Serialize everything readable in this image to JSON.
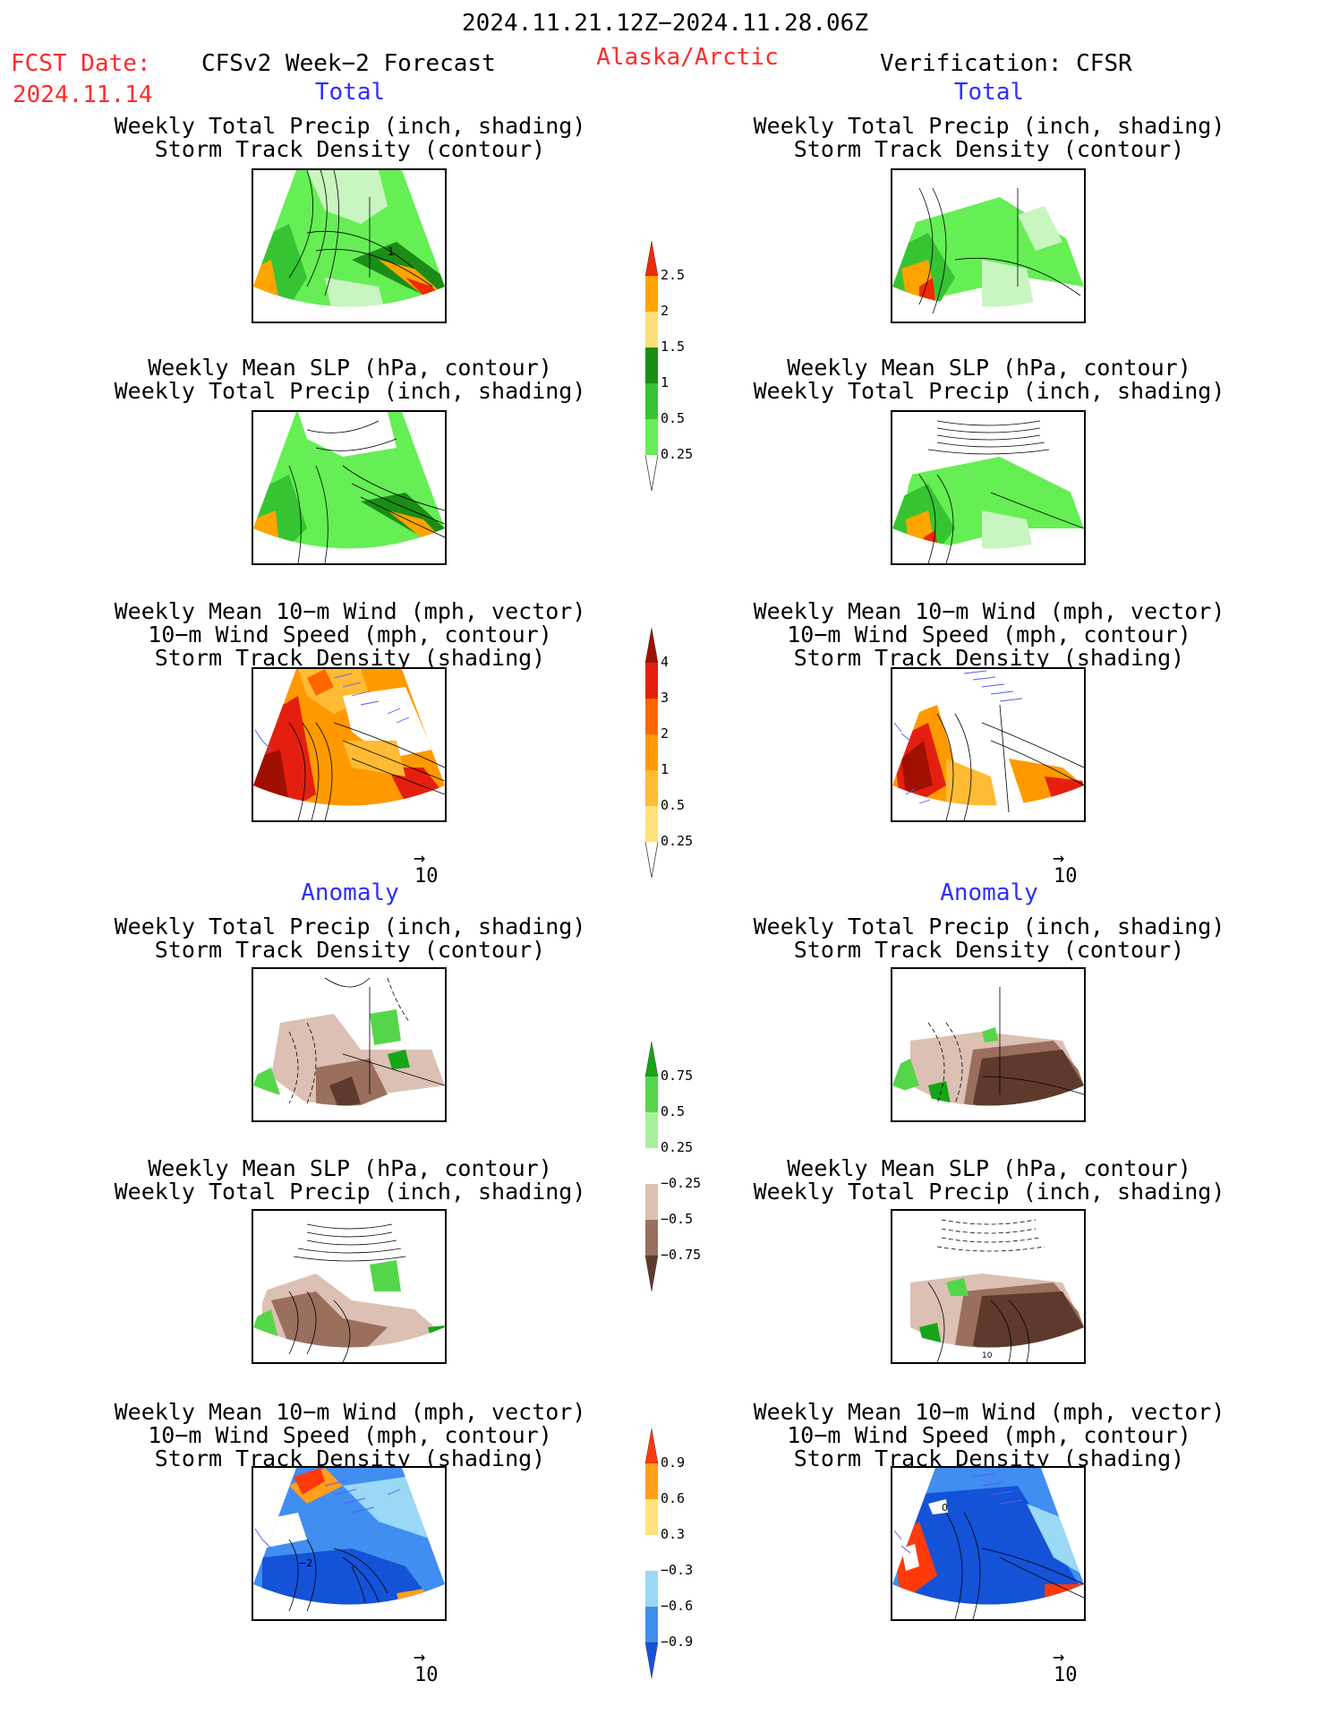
{
  "header": {
    "period": "2024.11.21.12Z−2024.11.28.06Z",
    "fcst_label": "FCST Date:",
    "fcst_date": "2024.11.14",
    "model": "CFSv2 Week−2 Forecast",
    "region": "Alaska/Arctic",
    "verification": "Verification: CFSR"
  },
  "sections": {
    "total": "Total",
    "anomaly": "Anomaly"
  },
  "panels": {
    "precip_storm": [
      "Weekly Total Precip (inch, shading)",
      "Storm Track Density (contour)"
    ],
    "slp_precip": [
      "Weekly Mean SLP (hPa, contour)",
      "Weekly Total Precip (inch, shading)"
    ],
    "wind_storm": [
      "Weekly Mean 10−m Wind (mph, vector)",
      "10−m Wind Speed (mph, contour)",
      "Storm Track Density (shading)"
    ]
  },
  "vector_ref": "10",
  "map_labels": {
    "fcst_total_precip": "1",
    "fcst_anom_wind": "−2",
    "verif_anom_wind": "0",
    "verif_anom_slp": "10"
  },
  "colorbars": {
    "precip_total": [
      "2.5",
      "2",
      "1.5",
      "1",
      "0.5",
      "0.25"
    ],
    "storm_total": [
      "4",
      "3",
      "2",
      "1",
      "0.5",
      "0.25"
    ],
    "precip_anom": [
      "0.75",
      "0.5",
      "0.25",
      "−0.25",
      "−0.5",
      "−0.75"
    ],
    "storm_anom": [
      "0.9",
      "0.6",
      "0.3",
      "−0.3",
      "−0.6",
      "−0.9"
    ]
  },
  "colors": {
    "header_red": "#ff2b2b",
    "section_blue": "#2e2eff",
    "precip_scale": [
      "#c8f5c0",
      "#66ee55",
      "#36c433",
      "#1b8d17",
      "#fbe07a",
      "#ffa400",
      "#ee2a08"
    ],
    "storm_scale": [
      "#fffcc0",
      "#fde27a",
      "#ffbb33",
      "#ff9900",
      "#ff6600",
      "#e51f10",
      "#a01000"
    ],
    "anom_precip_scale": [
      "#5d3a2c",
      "#9a6f5e",
      "#dcc0b4",
      "#ffffff",
      "#a6f29c",
      "#55d64a",
      "#17a518"
    ],
    "anom_storm_scale": [
      "#1452d8",
      "#3f8ef0",
      "#9ad8f5",
      "#ffffff",
      "#ffe27a",
      "#ff9f1a",
      "#ff3a0a"
    ]
  }
}
